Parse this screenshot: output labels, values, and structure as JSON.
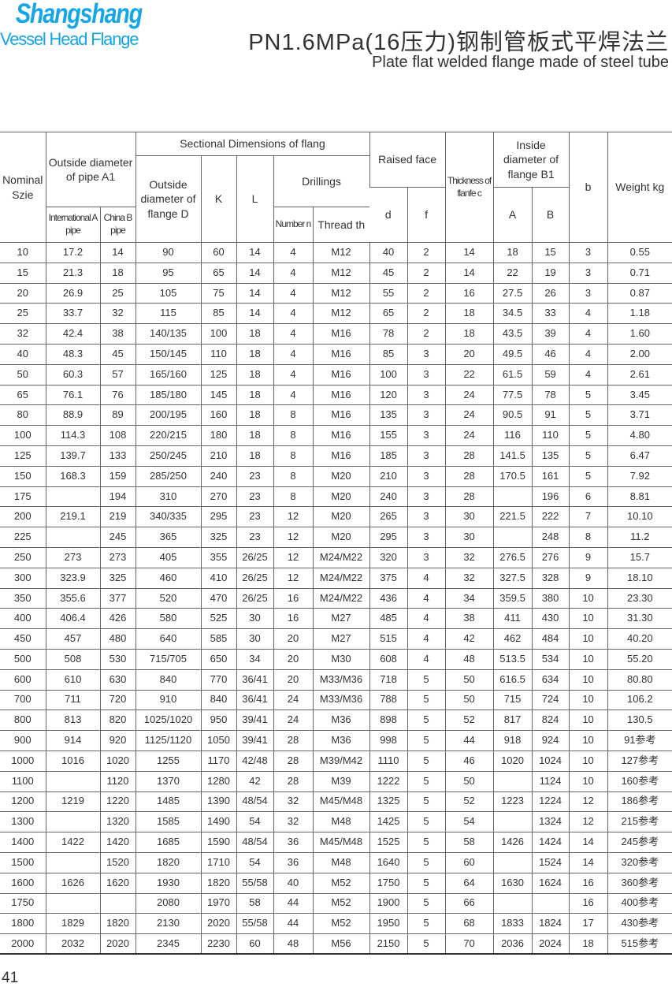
{
  "brand": {
    "name": "Shangshang",
    "tagline": "Vessel Head Flange",
    "color": "#14a6e6"
  },
  "title": "PN1.6MPa(16压力)钢制管板式平焊法兰",
  "subtitle": "Plate flat welded flange made of steel tube",
  "page_number": "41",
  "table": {
    "headers": {
      "nominal": "Nominal Szie",
      "pipe_od": "Outside diameter of pipe A1",
      "pipe_intl": "International A pipe",
      "pipe_china": "China B pipe",
      "sectional": "Sectional Dimensions of flang",
      "flange_od": "Outside diameter of flange D",
      "k": "K",
      "l": "L",
      "drillings": "Drillings",
      "number": "Number n",
      "thread": "Thread th",
      "raised_face": "Raised face",
      "d": "d",
      "f": "f",
      "thickness": "Thickness of flanfe c",
      "inside_d": "Inside diameter of flange B1",
      "a": "A",
      "b_col": "B",
      "b": "b",
      "weight": "Weight kg"
    },
    "rows": [
      [
        "10",
        "17.2",
        "14",
        "90",
        "60",
        "14",
        "4",
        "M12",
        "40",
        "2",
        "14",
        "18",
        "15",
        "3",
        "0.55"
      ],
      [
        "15",
        "21.3",
        "18",
        "95",
        "65",
        "14",
        "4",
        "M12",
        "45",
        "2",
        "14",
        "22",
        "19",
        "3",
        "0.71"
      ],
      [
        "20",
        "26.9",
        "25",
        "105",
        "75",
        "14",
        "4",
        "M12",
        "55",
        "2",
        "16",
        "27.5",
        "26",
        "3",
        "0.87"
      ],
      [
        "25",
        "33.7",
        "32",
        "115",
        "85",
        "14",
        "4",
        "M12",
        "65",
        "2",
        "18",
        "34.5",
        "33",
        "4",
        "1.18"
      ],
      [
        "32",
        "42.4",
        "38",
        "140/135",
        "100",
        "18",
        "4",
        "M16",
        "78",
        "2",
        "18",
        "43.5",
        "39",
        "4",
        "1.60"
      ],
      [
        "40",
        "48.3",
        "45",
        "150/145",
        "110",
        "18",
        "4",
        "M16",
        "85",
        "3",
        "20",
        "49.5",
        "46",
        "4",
        "2.00"
      ],
      [
        "50",
        "60.3",
        "57",
        "165/160",
        "125",
        "18",
        "4",
        "M16",
        "100",
        "3",
        "22",
        "61.5",
        "59",
        "4",
        "2.61"
      ],
      [
        "65",
        "76.1",
        "76",
        "185/180",
        "145",
        "18",
        "4",
        "M16",
        "120",
        "3",
        "24",
        "77.5",
        "78",
        "5",
        "3.45"
      ],
      [
        "80",
        "88.9",
        "89",
        "200/195",
        "160",
        "18",
        "8",
        "M16",
        "135",
        "3",
        "24",
        "90.5",
        "91",
        "5",
        "3.71"
      ],
      [
        "100",
        "114.3",
        "108",
        "220/215",
        "180",
        "18",
        "8",
        "M16",
        "155",
        "3",
        "24",
        "116",
        "110",
        "5",
        "4.80"
      ],
      [
        "125",
        "139.7",
        "133",
        "250/245",
        "210",
        "18",
        "8",
        "M16",
        "185",
        "3",
        "28",
        "141.5",
        "135",
        "5",
        "6.47"
      ],
      [
        "150",
        "168.3",
        "159",
        "285/250",
        "240",
        "23",
        "8",
        "M20",
        "210",
        "3",
        "28",
        "170.5",
        "161",
        "5",
        "7.92"
      ],
      [
        "175",
        "",
        "194",
        "310",
        "270",
        "23",
        "8",
        "M20",
        "240",
        "3",
        "28",
        "",
        "196",
        "6",
        "8.81"
      ],
      [
        "200",
        "219.1",
        "219",
        "340/335",
        "295",
        "23",
        "12",
        "M20",
        "265",
        "3",
        "30",
        "221.5",
        "222",
        "7",
        "10.10"
      ],
      [
        "225",
        "",
        "245",
        "365",
        "325",
        "23",
        "12",
        "M20",
        "295",
        "3",
        "30",
        "",
        "248",
        "8",
        "11.2"
      ],
      [
        "250",
        "273",
        "273",
        "405",
        "355",
        "26/25",
        "12",
        "M24/M22",
        "320",
        "3",
        "32",
        "276.5",
        "276",
        "9",
        "15.7"
      ],
      [
        "300",
        "323.9",
        "325",
        "460",
        "410",
        "26/25",
        "12",
        "M24/M22",
        "375",
        "4",
        "32",
        "327.5",
        "328",
        "9",
        "18.10"
      ],
      [
        "350",
        "355.6",
        "377",
        "520",
        "470",
        "26/25",
        "16",
        "M24/M22",
        "436",
        "4",
        "34",
        "359.5",
        "380",
        "10",
        "23.30"
      ],
      [
        "400",
        "406.4",
        "426",
        "580",
        "525",
        "30",
        "16",
        "M27",
        "485",
        "4",
        "38",
        "411",
        "430",
        "10",
        "31.30"
      ],
      [
        "450",
        "457",
        "480",
        "640",
        "585",
        "30",
        "20",
        "M27",
        "515",
        "4",
        "42",
        "462",
        "484",
        "10",
        "40.20"
      ],
      [
        "500",
        "508",
        "530",
        "715/705",
        "650",
        "34",
        "20",
        "M30",
        "608",
        "4",
        "48",
        "513.5",
        "534",
        "10",
        "55.20"
      ],
      [
        "600",
        "610",
        "630",
        "840",
        "770",
        "36/41",
        "20",
        "M33/M36",
        "718",
        "5",
        "50",
        "616.5",
        "634",
        "10",
        "80.80"
      ],
      [
        "700",
        "711",
        "720",
        "910",
        "840",
        "36/41",
        "24",
        "M33/M36",
        "788",
        "5",
        "50",
        "715",
        "724",
        "10",
        "106.2"
      ],
      [
        "800",
        "813",
        "820",
        "1025/1020",
        "950",
        "39/41",
        "24",
        "M36",
        "898",
        "5",
        "52",
        "817",
        "824",
        "10",
        "130.5"
      ],
      [
        "900",
        "914",
        "920",
        "1125/1120",
        "1050",
        "39/41",
        "28",
        "M36",
        "998",
        "5",
        "44",
        "918",
        "924",
        "10",
        "91参考"
      ],
      [
        "1000",
        "1016",
        "1020",
        "1255",
        "1170",
        "42/48",
        "28",
        "M39/M42",
        "1110",
        "5",
        "46",
        "1020",
        "1024",
        "10",
        "127参考"
      ],
      [
        "1100",
        "",
        "1120",
        "1370",
        "1280",
        "42",
        "28",
        "M39",
        "1222",
        "5",
        "50",
        "",
        "1124",
        "10",
        "160参考"
      ],
      [
        "1200",
        "1219",
        "1220",
        "1485",
        "1390",
        "48/54",
        "32",
        "M45/M48",
        "1325",
        "5",
        "52",
        "1223",
        "1224",
        "12",
        "186参考"
      ],
      [
        "1300",
        "",
        "1320",
        "1585",
        "1490",
        "54",
        "32",
        "M48",
        "1425",
        "5",
        "54",
        "",
        "1324",
        "12",
        "215参考"
      ],
      [
        "1400",
        "1422",
        "1420",
        "1685",
        "1590",
        "48/54",
        "36",
        "M45/M48",
        "1525",
        "5",
        "58",
        "1426",
        "1424",
        "14",
        "245参考"
      ],
      [
        "1500",
        "",
        "1520",
        "1820",
        "1710",
        "54",
        "36",
        "M48",
        "1640",
        "5",
        "60",
        "",
        "1524",
        "14",
        "320参考"
      ],
      [
        "1600",
        "1626",
        "1620",
        "1930",
        "1820",
        "55/58",
        "40",
        "M52",
        "1750",
        "5",
        "64",
        "1630",
        "1624",
        "16",
        "360参考"
      ],
      [
        "1750",
        "",
        "",
        "2080",
        "1970",
        "58",
        "44",
        "M52",
        "1900",
        "5",
        "66",
        "",
        "",
        "16",
        "400参考"
      ],
      [
        "1800",
        "1829",
        "1820",
        "2130",
        "2020",
        "55/58",
        "44",
        "M52",
        "1950",
        "5",
        "68",
        "1833",
        "1824",
        "17",
        "430参考"
      ],
      [
        "2000",
        "2032",
        "2020",
        "2345",
        "2230",
        "60",
        "48",
        "M56",
        "2150",
        "5",
        "70",
        "2036",
        "2024",
        "18",
        "515参考"
      ]
    ]
  }
}
